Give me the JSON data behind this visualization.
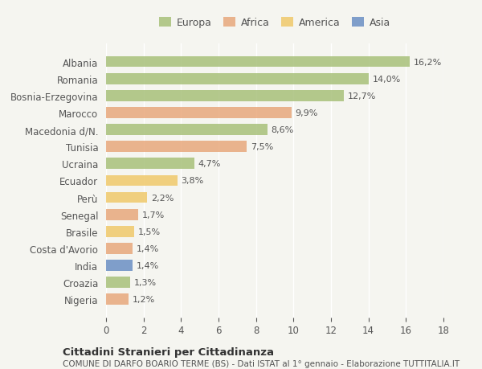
{
  "categories": [
    "Albania",
    "Romania",
    "Bosnia-Erzegovina",
    "Marocco",
    "Macedonia d/N.",
    "Tunisia",
    "Ucraina",
    "Ecuador",
    "Perù",
    "Senegal",
    "Brasile",
    "Costa d'Avorio",
    "India",
    "Croazia",
    "Nigeria"
  ],
  "values": [
    16.2,
    14.0,
    12.7,
    9.9,
    8.6,
    7.5,
    4.7,
    3.8,
    2.2,
    1.7,
    1.5,
    1.4,
    1.4,
    1.3,
    1.2
  ],
  "labels": [
    "16,2%",
    "14,0%",
    "12,7%",
    "9,9%",
    "8,6%",
    "7,5%",
    "4,7%",
    "3,8%",
    "2,2%",
    "1,7%",
    "1,5%",
    "1,4%",
    "1,4%",
    "1,3%",
    "1,2%"
  ],
  "continents": [
    "Europa",
    "Europa",
    "Europa",
    "Africa",
    "Europa",
    "Africa",
    "Europa",
    "America",
    "America",
    "Africa",
    "America",
    "Africa",
    "Asia",
    "Europa",
    "Africa"
  ],
  "continent_colors": {
    "Europa": "#a8c07a",
    "Africa": "#e8a87c",
    "America": "#f0c96a",
    "Asia": "#6b8fc4"
  },
  "legend_order": [
    "Europa",
    "Africa",
    "America",
    "Asia"
  ],
  "xlim": [
    0,
    18
  ],
  "xticks": [
    0,
    2,
    4,
    6,
    8,
    10,
    12,
    14,
    16,
    18
  ],
  "background_color": "#f5f5f0",
  "title": "Cittadini Stranieri per Cittadinanza",
  "subtitle": "COMUNE DI DARFO BOARIO TERME (BS) - Dati ISTAT al 1° gennaio - Elaborazione TUTTITALIA.IT",
  "bar_height": 0.65
}
